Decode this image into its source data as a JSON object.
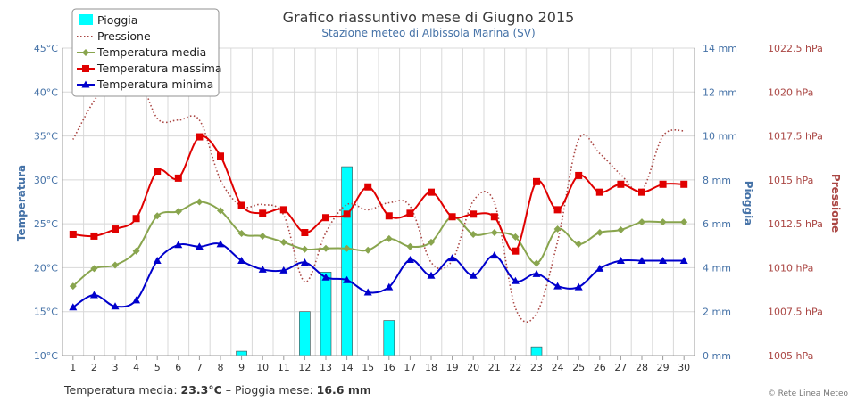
{
  "chart_data": {
    "type": "combo",
    "title": "Grafico riassuntivo mese di Giugno 2015",
    "subtitle": "Stazione meteo di Albissola Marina (SV)",
    "x": [
      1,
      2,
      3,
      4,
      5,
      6,
      7,
      8,
      9,
      10,
      11,
      12,
      13,
      14,
      15,
      16,
      17,
      18,
      19,
      20,
      21,
      22,
      23,
      24,
      25,
      26,
      27,
      28,
      29,
      30
    ],
    "axes": {
      "temperature": {
        "title": "Temperatura",
        "unit": "°C",
        "range": [
          10,
          45
        ],
        "ticks": [
          "10°C",
          "15°C",
          "20°C",
          "25°C",
          "30°C",
          "35°C",
          "40°C",
          "45°C"
        ]
      },
      "rain": {
        "title": "Pioggia",
        "unit": "mm",
        "range": [
          0,
          14
        ],
        "ticks": [
          "0 mm",
          "2 mm",
          "4 mm",
          "6 mm",
          "8 mm",
          "10 mm",
          "12 mm",
          "14 mm"
        ]
      },
      "pressure": {
        "title": "Pressione",
        "unit": "hPa",
        "range": [
          1005,
          1022.5
        ],
        "ticks": [
          "1005 hPa",
          "1007.5 hPa",
          "1010 hPa",
          "1012.5 hPa",
          "1015 hPa",
          "1017.5 hPa",
          "1020 hPa",
          "1022.5 hPa"
        ]
      }
    },
    "series": [
      {
        "name": "Pioggia",
        "type": "bar",
        "axis": "rain",
        "color": "#00ffff",
        "values": [
          0,
          0,
          0,
          0,
          0,
          0,
          0,
          0,
          0.2,
          0,
          0,
          2.0,
          3.8,
          8.6,
          0,
          1.6,
          0,
          0,
          0,
          0,
          0,
          0,
          0.4,
          0,
          0,
          0,
          0,
          0,
          0,
          0
        ]
      },
      {
        "name": "Pressione",
        "type": "line-dotted",
        "axis": "pressure",
        "color": "#aa4643",
        "values": [
          1017.3,
          1019.5,
          1021.0,
          1021.2,
          1018.5,
          1018.4,
          1018.4,
          1015.0,
          1013.5,
          1013.6,
          1013.0,
          1009.2,
          1012.0,
          1013.6,
          1013.3,
          1013.7,
          1013.5,
          1010.3,
          1010.4,
          1013.8,
          1013.7,
          1007.7,
          1007.4,
          1011.5,
          1017.3,
          1016.5,
          1015.3,
          1014.4,
          1017.5,
          1017.8
        ]
      },
      {
        "name": "Temperatura media",
        "type": "line",
        "axis": "temperature",
        "color": "#89a54e",
        "marker": "diamond",
        "values": [
          17.9,
          19.9,
          20.3,
          21.9,
          25.9,
          26.4,
          27.5,
          26.5,
          23.9,
          23.6,
          22.9,
          22.1,
          22.2,
          22.2,
          22.0,
          23.3,
          22.4,
          22.9,
          25.8,
          23.8,
          24.0,
          23.5,
          20.5,
          24.4,
          22.7,
          24.0,
          24.3,
          25.2,
          25.2,
          25.2
        ]
      },
      {
        "name": "Temperatura massima",
        "type": "line",
        "axis": "temperature",
        "color": "#e00000",
        "marker": "square",
        "values": [
          23.8,
          23.6,
          24.4,
          25.6,
          31.0,
          30.2,
          34.9,
          32.7,
          27.1,
          26.2,
          26.6,
          24.0,
          25.7,
          26.1,
          29.2,
          25.9,
          26.2,
          28.6,
          25.8,
          26.1,
          25.8,
          21.9,
          29.8,
          26.6,
          30.5,
          28.6,
          29.5,
          28.6,
          29.5,
          29.5
        ]
      },
      {
        "name": "Temperatura minima",
        "type": "line",
        "axis": "temperature",
        "color": "#0000cc",
        "marker": "triangle",
        "values": [
          15.5,
          16.9,
          15.6,
          16.3,
          20.8,
          22.6,
          22.4,
          22.7,
          20.8,
          19.8,
          19.7,
          20.6,
          18.9,
          18.6,
          17.2,
          17.8,
          20.9,
          19.1,
          21.1,
          19.1,
          21.4,
          18.5,
          19.3,
          17.9,
          17.8,
          19.9,
          20.8,
          20.8,
          20.8,
          20.8
        ]
      }
    ],
    "legend_position": "top-left",
    "grid": true
  },
  "legend": [
    {
      "label": "Pioggia"
    },
    {
      "label": "Pressione"
    },
    {
      "label": "Temperatura media"
    },
    {
      "label": "Temperatura massima"
    },
    {
      "label": "Temperatura minima"
    }
  ],
  "footer": {
    "media_label": "Temperatura media:",
    "media_value": "23.3°C",
    "separator": "–",
    "rain_label": "Pioggia mese:",
    "rain_value": "16.6 mm"
  },
  "credit": "© Rete Linea Meteo"
}
